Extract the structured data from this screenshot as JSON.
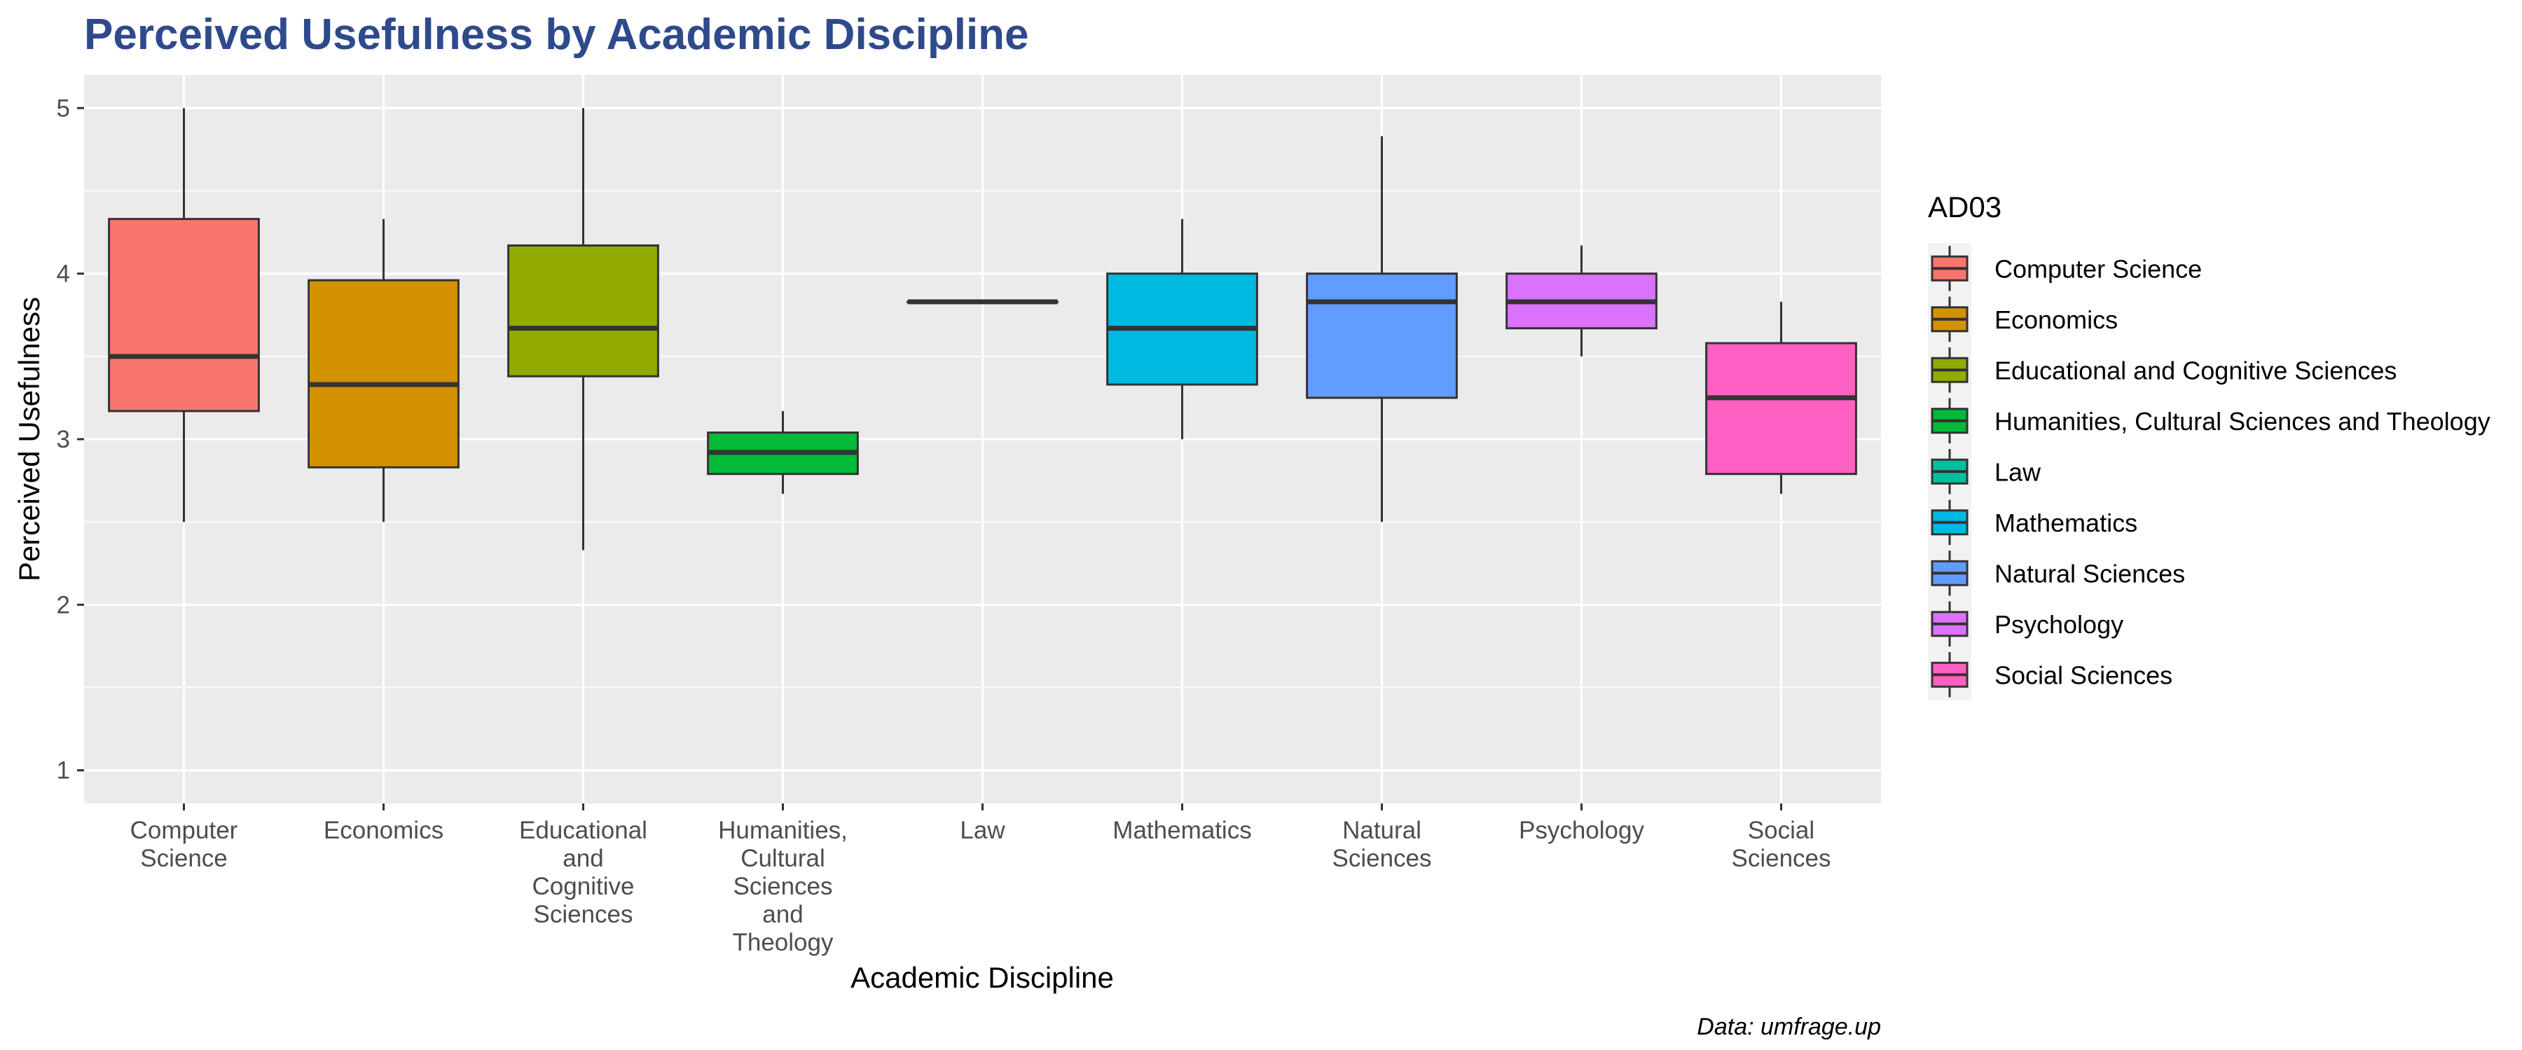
{
  "chart_data": {
    "type": "boxplot",
    "title": "Perceived Usefulness by Academic Discipline",
    "xlabel": "Academic Discipline",
    "ylabel": "Perceived Usefulness",
    "caption": "Data: umfrage.up",
    "legend_title": "AD03",
    "legend_position": "right",
    "grid": true,
    "ylim": [
      0.8,
      5.2
    ],
    "yticks": [
      1,
      2,
      3,
      4,
      5
    ],
    "categories": [
      {
        "name": "Computer Science",
        "tick_lines": [
          "Computer",
          "Science"
        ],
        "color": "#F8766D",
        "whisker_low": 2.5,
        "q1": 3.17,
        "median": 3.5,
        "q3": 4.33,
        "whisker_high": 5.0
      },
      {
        "name": "Economics",
        "tick_lines": [
          "Economics"
        ],
        "color": "#D39200",
        "whisker_low": 2.5,
        "q1": 2.83,
        "median": 3.33,
        "q3": 3.96,
        "whisker_high": 4.33
      },
      {
        "name": "Educational and Cognitive Sciences",
        "tick_lines": [
          "Educational",
          "and",
          "Cognitive",
          "Sciences"
        ],
        "color": "#93AA00",
        "whisker_low": 2.33,
        "q1": 3.38,
        "median": 3.67,
        "q3": 4.17,
        "whisker_high": 5.0
      },
      {
        "name": "Humanities, Cultural Sciences and Theology",
        "tick_lines": [
          "Humanities,",
          "Cultural",
          "Sciences",
          "and",
          "Theology"
        ],
        "color": "#00BA38",
        "whisker_low": 2.67,
        "q1": 2.79,
        "median": 2.92,
        "q3": 3.04,
        "whisker_high": 3.17
      },
      {
        "name": "Law",
        "tick_lines": [
          "Law"
        ],
        "color": "#00C19F",
        "whisker_low": 3.83,
        "q1": 3.83,
        "median": 3.83,
        "q3": 3.83,
        "whisker_high": 3.83
      },
      {
        "name": "Mathematics",
        "tick_lines": [
          "Mathematics"
        ],
        "color": "#00B9E3",
        "whisker_low": 3.0,
        "q1": 3.33,
        "median": 3.67,
        "q3": 4.0,
        "whisker_high": 4.33
      },
      {
        "name": "Natural Sciences",
        "tick_lines": [
          "Natural",
          "Sciences"
        ],
        "color": "#619CFF",
        "whisker_low": 2.5,
        "q1": 3.25,
        "median": 3.83,
        "q3": 4.0,
        "whisker_high": 4.83
      },
      {
        "name": "Psychology",
        "tick_lines": [
          "Psychology"
        ],
        "color": "#DB72FB",
        "whisker_low": 3.5,
        "q1": 3.67,
        "median": 3.83,
        "q3": 4.0,
        "whisker_high": 4.17
      },
      {
        "name": "Social Sciences",
        "tick_lines": [
          "Social",
          "Sciences"
        ],
        "color": "#FF61C3",
        "whisker_low": 2.67,
        "q1": 2.79,
        "median": 3.25,
        "q3": 3.58,
        "whisker_high": 3.83
      }
    ]
  },
  "colors": {
    "title": "#2E4A8B",
    "panel_background": "#EBEBEB",
    "grid": "#FFFFFF",
    "box_outline": "#333333"
  }
}
